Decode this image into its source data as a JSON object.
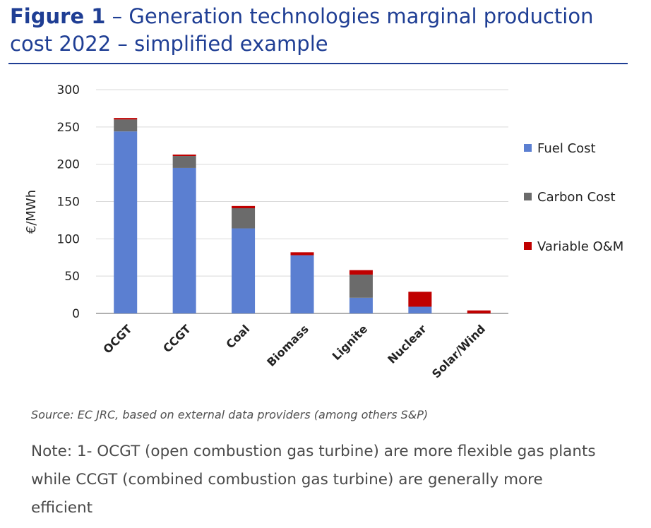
{
  "figure": {
    "title_prefix": "Figure 1",
    "title_rest": " – Generation technologies marginal production cost 2022 – simplified example",
    "source": "Source: EC JRC, based on external data providers (among others S&P)",
    "note": "Note: 1- OCGT (open combustion gas turbine) are more flexible gas plants while CCGT (combined combustion gas turbine) are generally more efficient"
  },
  "chart_data": {
    "type": "bar",
    "stacked": true,
    "categories": [
      "OCGT",
      "CCGT",
      "Coal",
      "Biomass",
      "Lignite",
      "Nuclear",
      "Solar/Wind"
    ],
    "series": [
      {
        "name": "Fuel Cost",
        "color": "#5b7fd1",
        "values": [
          244,
          195,
          114,
          78,
          21,
          9,
          0
        ]
      },
      {
        "name": "Carbon Cost",
        "color": "#6b6b6b",
        "values": [
          16,
          16,
          27,
          0,
          31,
          0,
          0
        ]
      },
      {
        "name": "Variable O&M",
        "color": "#c00000",
        "values": [
          2,
          2,
          3,
          4,
          6,
          20,
          4
        ]
      }
    ],
    "ylabel": "€/MWh",
    "ylim": [
      0,
      300
    ],
    "yticks": [
      0,
      50,
      100,
      150,
      200,
      250,
      300
    ],
    "grid": true,
    "legend": "right"
  }
}
